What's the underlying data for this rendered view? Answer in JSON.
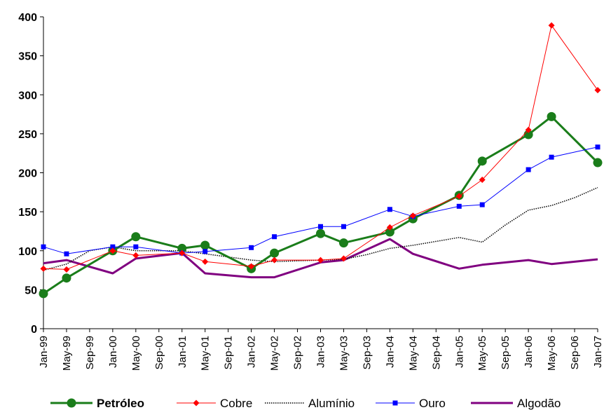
{
  "chart_data": {
    "type": "line",
    "categories": [
      "Jan-99",
      "May-99",
      "Sep-99",
      "Jan-00",
      "May-00",
      "Sep-00",
      "Jan-01",
      "May-01",
      "Sep-01",
      "Jan-02",
      "May-02",
      "Sep-02",
      "Jan-03",
      "May-03",
      "Sep-03",
      "Jan-04",
      "May-04",
      "Sep-04",
      "Jan-05",
      "May-05",
      "Sep-05",
      "Jan-06",
      "May-06",
      "Sep-06",
      "Jan-07"
    ],
    "ylim": [
      0,
      400
    ],
    "yticks": [
      0,
      50,
      100,
      150,
      200,
      250,
      300,
      350,
      400
    ],
    "grid": false,
    "legend_position": "bottom",
    "series": [
      {
        "name": "Petróleo",
        "color": "#1a7d1a",
        "style": "thick-circle",
        "points": [
          [
            0,
            45
          ],
          [
            1,
            65
          ],
          [
            3,
            100
          ],
          [
            4,
            118
          ],
          [
            6,
            103
          ],
          [
            7,
            107
          ],
          [
            9,
            77
          ],
          [
            10,
            97
          ],
          [
            12,
            122
          ],
          [
            13,
            110
          ],
          [
            15,
            124
          ],
          [
            16,
            141
          ],
          [
            18,
            171
          ],
          [
            19,
            215
          ],
          [
            21,
            249
          ],
          [
            22,
            272
          ],
          [
            24,
            213
          ]
        ]
      },
      {
        "name": "Cobre",
        "color": "#ff0000",
        "style": "thin-diamond",
        "points": [
          [
            0,
            77
          ],
          [
            1,
            76
          ],
          [
            3,
            100
          ],
          [
            4,
            94
          ],
          [
            6,
            97
          ],
          [
            7,
            86
          ],
          [
            9,
            80
          ],
          [
            10,
            88
          ],
          [
            12,
            88
          ],
          [
            13,
            90
          ],
          [
            15,
            130
          ],
          [
            16,
            145
          ],
          [
            18,
            170
          ],
          [
            19,
            191
          ],
          [
            21,
            255
          ],
          [
            22,
            389
          ],
          [
            24,
            306
          ]
        ]
      },
      {
        "name": "Alumínio",
        "color": "#000000",
        "style": "dotted",
        "points": [
          [
            0,
            75
          ],
          [
            1,
            83
          ],
          [
            2,
            100
          ],
          [
            3,
            105
          ],
          [
            4,
            100
          ],
          [
            5,
            100
          ],
          [
            6,
            100
          ],
          [
            7,
            96
          ],
          [
            8,
            92
          ],
          [
            9,
            88
          ],
          [
            10,
            86
          ],
          [
            11,
            87
          ],
          [
            12,
            88
          ],
          [
            13,
            89
          ],
          [
            14,
            95
          ],
          [
            15,
            103
          ],
          [
            16,
            107
          ],
          [
            17,
            112
          ],
          [
            18,
            117
          ],
          [
            19,
            111
          ],
          [
            20,
            133
          ],
          [
            21,
            152
          ],
          [
            22,
            158
          ],
          [
            23,
            168
          ],
          [
            24,
            181
          ]
        ]
      },
      {
        "name": "Ouro",
        "color": "#0000ff",
        "style": "thin-square",
        "points": [
          [
            0,
            105
          ],
          [
            1,
            96
          ],
          [
            3,
            105
          ],
          [
            4,
            105
          ],
          [
            6,
            97
          ],
          [
            7,
            99
          ],
          [
            9,
            104
          ],
          [
            10,
            118
          ],
          [
            12,
            131
          ],
          [
            13,
            131
          ],
          [
            15,
            153
          ],
          [
            16,
            144
          ],
          [
            18,
            157
          ],
          [
            19,
            159
          ],
          [
            21,
            204
          ],
          [
            22,
            220
          ],
          [
            24,
            233
          ]
        ]
      },
      {
        "name": "Algodão",
        "color": "#800080",
        "style": "thick",
        "points": [
          [
            0,
            84
          ],
          [
            1,
            88
          ],
          [
            3,
            71
          ],
          [
            4,
            90
          ],
          [
            6,
            97
          ],
          [
            7,
            71
          ],
          [
            9,
            66
          ],
          [
            10,
            66
          ],
          [
            12,
            85
          ],
          [
            13,
            88
          ],
          [
            15,
            115
          ],
          [
            16,
            96
          ],
          [
            18,
            77
          ],
          [
            19,
            82
          ],
          [
            21,
            88
          ],
          [
            22,
            83
          ],
          [
            24,
            89
          ]
        ]
      }
    ]
  }
}
